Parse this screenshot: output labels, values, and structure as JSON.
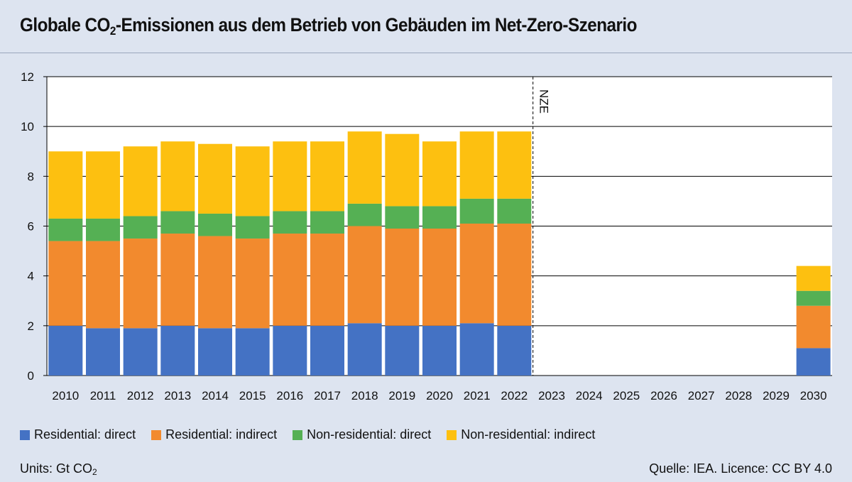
{
  "header": {
    "title_prefix": "Globale CO",
    "title_sub": "2",
    "title_suffix": "-Emissionen aus dem Betrieb von Gebäuden im Net-Zero-Szenario"
  },
  "footer": {
    "units_prefix": "Units: Gt CO",
    "units_sub": "2",
    "source": "Quelle: IEA. Licence: CC BY 4.0"
  },
  "colors": {
    "background": "#dde4f0",
    "plot_background": "#ffffff",
    "grid": "#000000",
    "residential_direct": "#4472c4",
    "residential_indirect": "#f28a2e",
    "nonresidential_direct": "#55b054",
    "nonresidential_indirect": "#fdc010"
  },
  "chart_data": {
    "type": "bar",
    "stacked": true,
    "categories": [
      "2010",
      "2011",
      "2012",
      "2013",
      "2014",
      "2015",
      "2016",
      "2017",
      "2018",
      "2019",
      "2020",
      "2021",
      "2022",
      "2023",
      "2024",
      "2025",
      "2026",
      "2027",
      "2028",
      "2029",
      "2030"
    ],
    "series": [
      {
        "name": "Residential: direct",
        "color": "#4472c4",
        "values": [
          2.0,
          1.9,
          1.9,
          2.0,
          1.9,
          1.9,
          2.0,
          2.0,
          2.1,
          2.0,
          2.0,
          2.1,
          2.0,
          null,
          null,
          null,
          null,
          null,
          null,
          null,
          1.1
        ]
      },
      {
        "name": "Residential: indirect",
        "color": "#f28a2e",
        "values": [
          3.4,
          3.5,
          3.6,
          3.7,
          3.7,
          3.6,
          3.7,
          3.7,
          3.9,
          3.9,
          3.9,
          4.0,
          4.1,
          null,
          null,
          null,
          null,
          null,
          null,
          null,
          1.7
        ]
      },
      {
        "name": "Non-residential: direct",
        "color": "#55b054",
        "values": [
          0.9,
          0.9,
          0.9,
          0.9,
          0.9,
          0.9,
          0.9,
          0.9,
          0.9,
          0.9,
          0.9,
          1.0,
          1.0,
          null,
          null,
          null,
          null,
          null,
          null,
          null,
          0.6
        ]
      },
      {
        "name": "Non-residential: indirect",
        "color": "#fdc010",
        "values": [
          2.7,
          2.7,
          2.8,
          2.8,
          2.8,
          2.8,
          2.8,
          2.8,
          2.9,
          2.9,
          2.6,
          2.7,
          2.7,
          null,
          null,
          null,
          null,
          null,
          null,
          null,
          1.0
        ]
      }
    ],
    "ylim": [
      0,
      12
    ],
    "yticks": [
      "0",
      "2",
      "4",
      "6",
      "8",
      "10",
      "12"
    ],
    "grid": true,
    "legend_position": "bottom",
    "annotation": {
      "text": "NZE",
      "after_category": "2022",
      "style": "dashed-vertical-line"
    }
  }
}
